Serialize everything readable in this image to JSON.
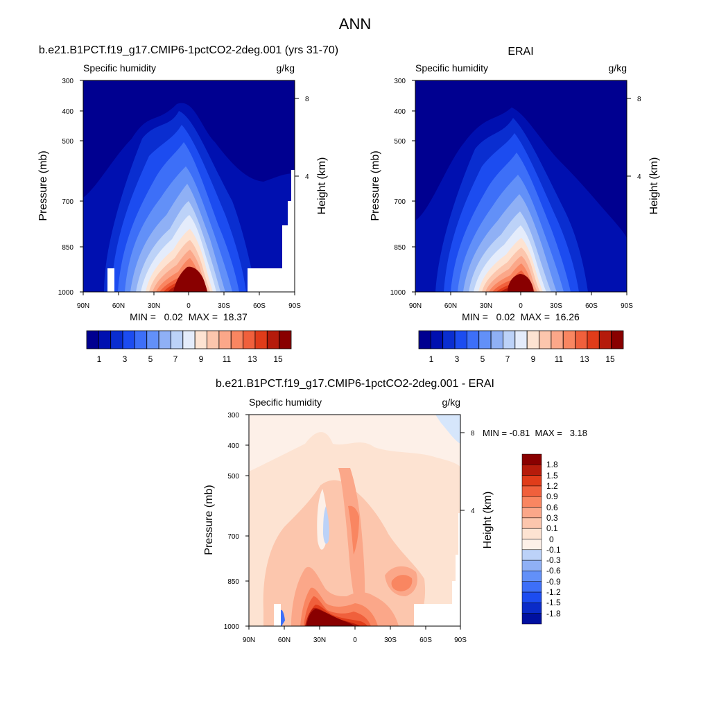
{
  "figure": {
    "title": "ANN"
  },
  "palette": {
    "main": [
      "#000090",
      "#0010b0",
      "#0a2ed0",
      "#1c4cf0",
      "#3d6ff8",
      "#6290f8",
      "#8fb0f5",
      "#bcd2f8",
      "#e4ecfb",
      "#fde3d2",
      "#fcc6ad",
      "#fba789",
      "#f98661",
      "#f0603c",
      "#e03c1a",
      "#b51b0b",
      "#890000"
    ],
    "diff": [
      "#0010a0",
      "#0a2bc8",
      "#1c4cf0",
      "#3d6ff8",
      "#6290f8",
      "#8fb0f5",
      "#bcd2f8",
      "#fdf0e8",
      "#fde3d2",
      "#fcc6ad",
      "#fba789",
      "#f98661",
      "#f0603c",
      "#e03c1a",
      "#b51b0b",
      "#890000"
    ]
  },
  "chart_data": [
    {
      "type": "heatmap",
      "panel_title": "b.e21.B1PCT.f19_g17.CMIP6-1pctCO2-2deg.001 (yrs 31-70)",
      "variable": "Specific humidity",
      "units": "g/kg",
      "ylabel": "Pressure (mb)",
      "y2label": "Height (km)",
      "xticks": [
        "90N",
        "60N",
        "30N",
        "0",
        "30S",
        "60S",
        "90S"
      ],
      "yticks": [
        "300",
        "400",
        "500",
        "700",
        "850",
        "1000"
      ],
      "y2ticks": [
        "8",
        "4"
      ],
      "stats": "MIN =   0.02  MAX =  18.37",
      "min": 0.02,
      "max": 18.37,
      "colorbar_labels": [
        "1",
        "3",
        "5",
        "7",
        "9",
        "11",
        "13",
        "15"
      ],
      "levels": [
        1,
        2,
        3,
        4,
        5,
        6,
        7,
        8,
        9,
        10,
        11,
        12,
        13,
        14,
        15,
        16
      ]
    },
    {
      "type": "heatmap",
      "panel_title": "ERAI",
      "variable": "Specific humidity",
      "units": "g/kg",
      "ylabel": "Pressure (mb)",
      "y2label": "Height (km)",
      "xticks": [
        "90N",
        "60N",
        "30N",
        "0",
        "30S",
        "60S",
        "90S"
      ],
      "yticks": [
        "300",
        "400",
        "500",
        "700",
        "850",
        "1000"
      ],
      "y2ticks": [
        "8",
        "4"
      ],
      "stats": "MIN =   0.02  MAX =  16.26",
      "min": 0.02,
      "max": 16.26,
      "colorbar_labels": [
        "1",
        "3",
        "5",
        "7",
        "9",
        "11",
        "13",
        "15"
      ],
      "levels": [
        1,
        2,
        3,
        4,
        5,
        6,
        7,
        8,
        9,
        10,
        11,
        12,
        13,
        14,
        15,
        16
      ]
    },
    {
      "type": "heatmap",
      "panel_title": "b.e21.B1PCT.f19_g17.CMIP6-1pctCO2-2deg.001 - ERAI",
      "variable": "Specific humidity",
      "units": "g/kg",
      "ylabel": "Pressure (mb)",
      "y2label": "Height (km)",
      "xticks": [
        "90N",
        "60N",
        "30N",
        "0",
        "30S",
        "60S",
        "90S"
      ],
      "yticks": [
        "300",
        "400",
        "500",
        "700",
        "850",
        "1000"
      ],
      "y2ticks": [
        "8",
        "4"
      ],
      "stats": "MIN = -0.81  MAX =   3.18",
      "min": -0.81,
      "max": 3.18,
      "colorbar_labels": [
        "1.8",
        "1.5",
        "1.2",
        "0.9",
        "0.6",
        "0.3",
        "0.1",
        "0",
        "-0.1",
        "-0.3",
        "-0.6",
        "-0.9",
        "-1.2",
        "-1.5",
        "-1.8"
      ],
      "levels": [
        -1.8,
        -1.5,
        -1.2,
        -0.9,
        -0.6,
        -0.3,
        -0.1,
        0,
        0.1,
        0.3,
        0.6,
        0.9,
        1.2,
        1.5,
        1.8
      ]
    }
  ]
}
